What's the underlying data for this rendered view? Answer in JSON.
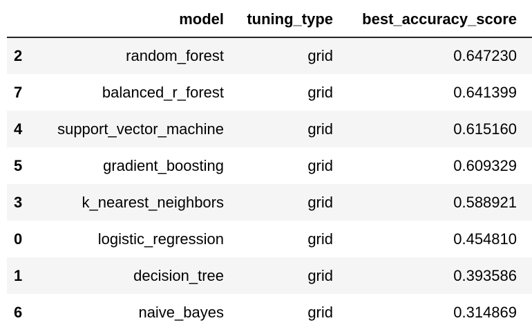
{
  "table": {
    "columns": [
      "",
      "model",
      "tuning_type",
      "best_accuracy_score"
    ],
    "rows": [
      {
        "index": "2",
        "model": "random_forest",
        "tuning_type": "grid",
        "best_accuracy_score": "0.647230"
      },
      {
        "index": "7",
        "model": "balanced_r_forest",
        "tuning_type": "grid",
        "best_accuracy_score": "0.641399"
      },
      {
        "index": "4",
        "model": "support_vector_machine",
        "tuning_type": "grid",
        "best_accuracy_score": "0.615160"
      },
      {
        "index": "5",
        "model": "gradient_boosting",
        "tuning_type": "grid",
        "best_accuracy_score": "0.609329"
      },
      {
        "index": "3",
        "model": "k_nearest_neighbors",
        "tuning_type": "grid",
        "best_accuracy_score": "0.588921"
      },
      {
        "index": "0",
        "model": "logistic_regression",
        "tuning_type": "grid",
        "best_accuracy_score": "0.454810"
      },
      {
        "index": "1",
        "model": "decision_tree",
        "tuning_type": "grid",
        "best_accuracy_score": "0.393586"
      },
      {
        "index": "6",
        "model": "naive_bayes",
        "tuning_type": "grid",
        "best_accuracy_score": "0.314869"
      }
    ]
  },
  "colors": {
    "striped_row": "#f5f5f5",
    "header_rule": "#222222",
    "text": "#000000"
  }
}
